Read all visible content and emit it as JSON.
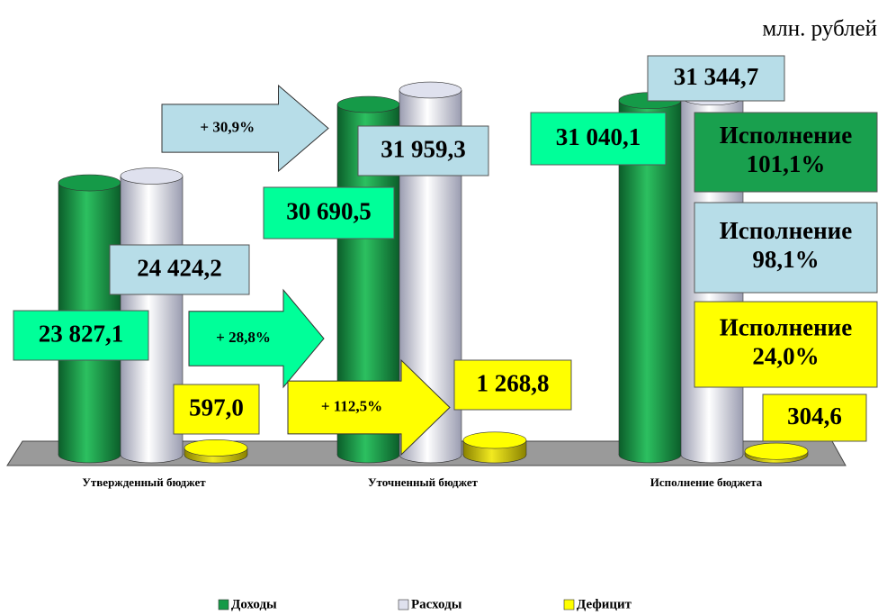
{
  "chart_data": {
    "type": "bar3d",
    "unit_label": "млн. рублей",
    "categories": [
      "Утвержденный бюджет",
      "Уточненный бюджет",
      "Исполнение бюджета"
    ],
    "series": [
      {
        "name": "Доходы",
        "color": "#159a48",
        "label_color": "#00ff99",
        "values": [
          23827.1,
          30690.5,
          31040.1
        ],
        "value_labels": [
          "23 827,1",
          "30 690,5",
          "31 040,1"
        ]
      },
      {
        "name": "Расходы",
        "color": "#dfe1ee",
        "label_color": "#b7dde8",
        "values": [
          24424.2,
          31959.3,
          31344.7
        ],
        "value_labels": [
          "24 424,2",
          "31 959,3",
          "31 344,7"
        ]
      },
      {
        "name": "Дефицит",
        "color": "#ffff00",
        "label_color": "#ffff00",
        "values": [
          597.0,
          1268.8,
          304.6
        ],
        "value_labels": [
          "597,0",
          "1 268,8",
          "304,6"
        ]
      }
    ],
    "arrows": [
      {
        "text": "+ 30,9%",
        "color": "#b7dde8"
      },
      {
        "text": "+ 28,8%",
        "color": "#00ff99"
      },
      {
        "text": "+ 112,5%",
        "color": "#ffff00"
      }
    ],
    "execution_boxes": [
      {
        "lines": [
          "Исполнение",
          "101,1%"
        ],
        "color": "#19a04e"
      },
      {
        "lines": [
          "Исполнение",
          "98,1%"
        ],
        "color": "#b7dde8"
      },
      {
        "lines": [
          "Исполнение",
          "24,0%"
        ],
        "color": "#ffff00"
      }
    ]
  }
}
